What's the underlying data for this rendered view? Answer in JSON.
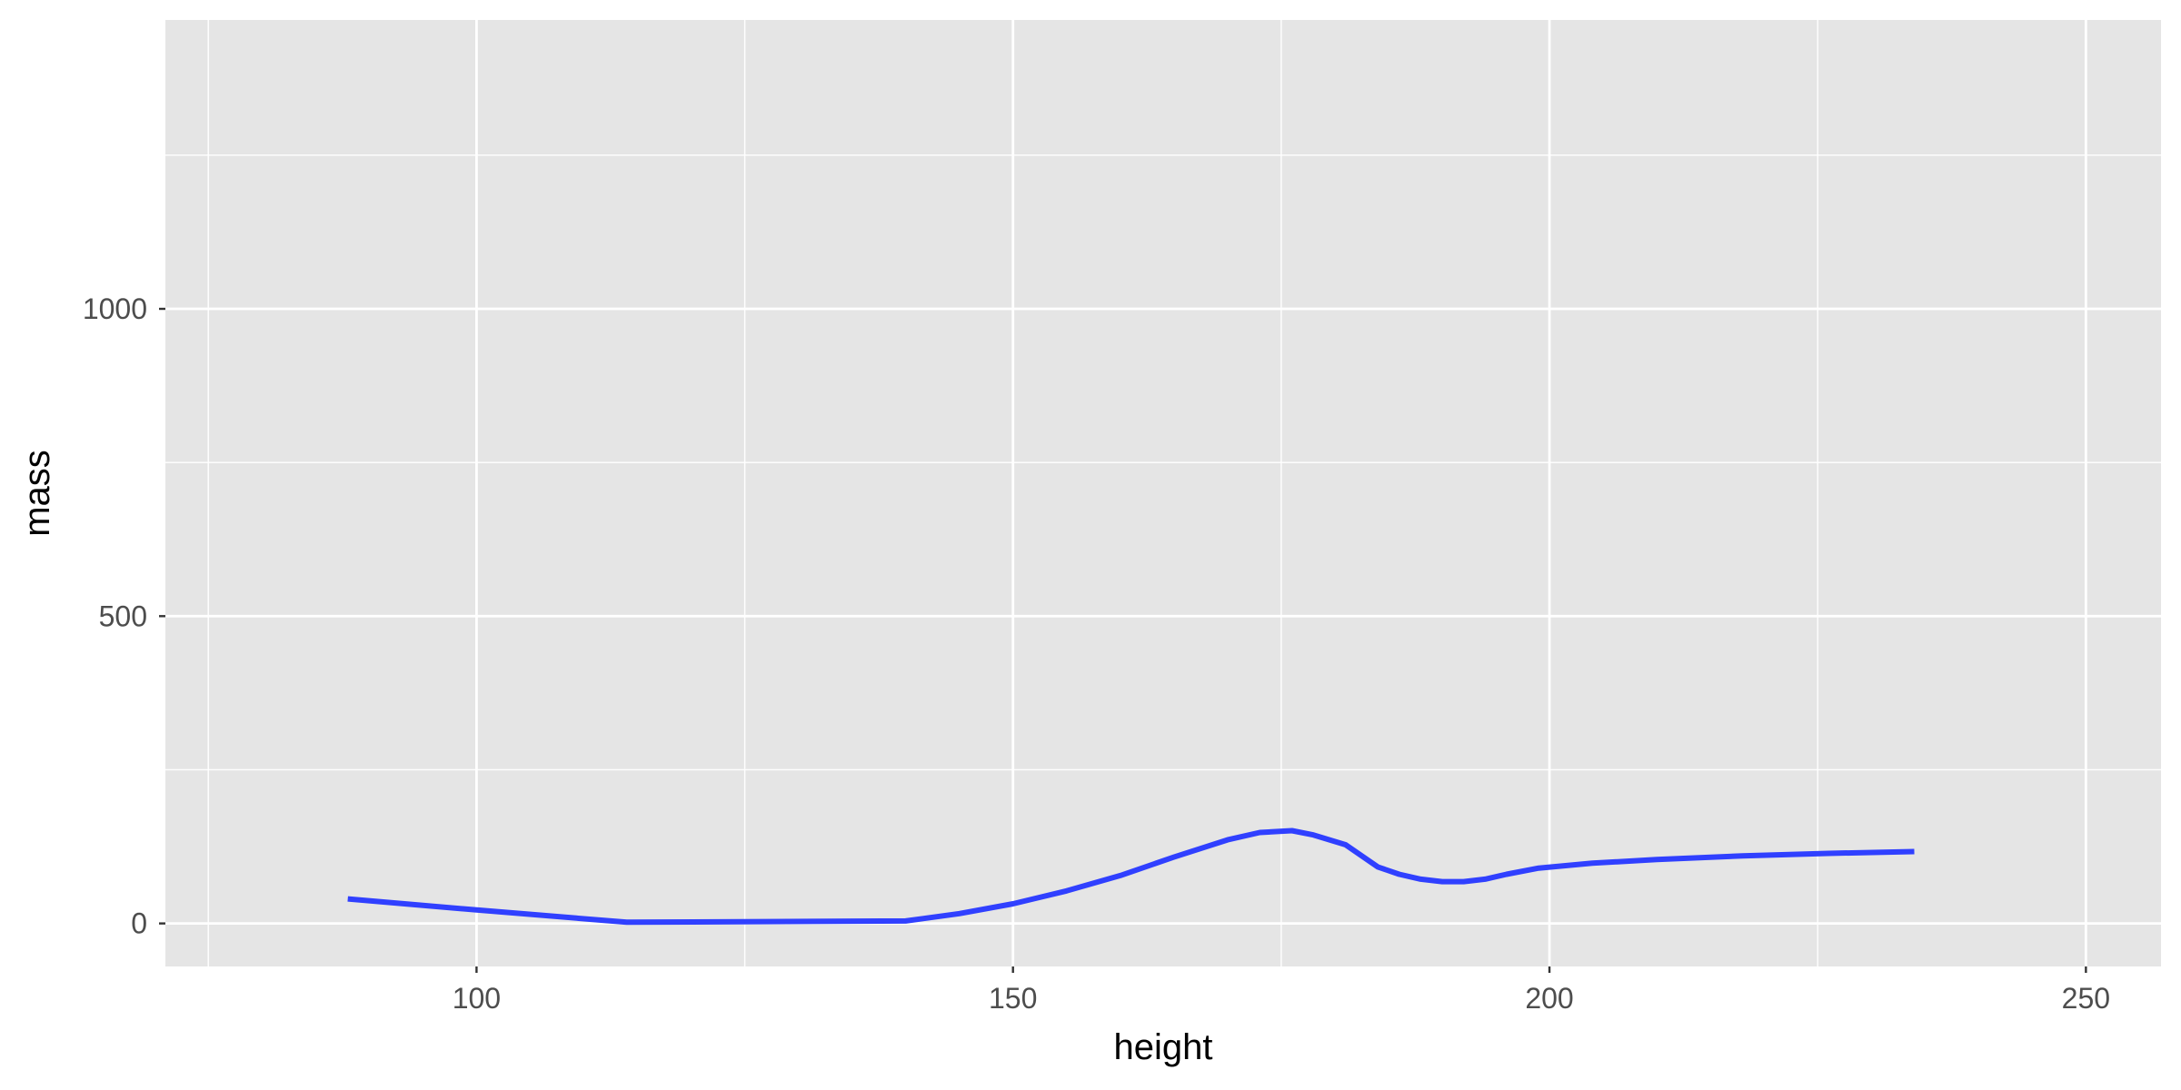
{
  "chart_data": {
    "type": "line",
    "title": "",
    "xlabel": "height",
    "ylabel": "mass",
    "xlim": [
      71,
      257
    ],
    "ylim": [
      -70,
      1470
    ],
    "x_ticks": [
      100,
      150,
      200,
      250
    ],
    "x_tick_labels": [
      "100",
      "150",
      "200",
      "250"
    ],
    "x_minor_ticks": [
      75,
      125,
      175,
      225
    ],
    "y_ticks": [
      0,
      500,
      1000
    ],
    "y_tick_labels": [
      "0",
      "500",
      "1000"
    ],
    "y_minor_ticks": [
      250,
      750,
      1250
    ],
    "grid": true,
    "legend": "none",
    "colors": {
      "panel": "#e5e5e5",
      "grid": "#ffffff",
      "line": "#3040ff",
      "axis_text": "#4d4d4d",
      "tick": "#333333"
    },
    "series": [
      {
        "x": [
          88,
          100,
          114,
          127,
          140,
          145,
          150,
          155,
          160,
          165,
          170,
          173,
          176,
          178,
          181,
          184,
          186,
          188,
          190,
          192,
          194,
          196,
          199,
          204,
          210,
          218,
          226,
          234
        ],
        "y": [
          40,
          22,
          2,
          3,
          4,
          16,
          32,
          53,
          78,
          108,
          136,
          148,
          151,
          144,
          128,
          92,
          80,
          72,
          68,
          68,
          72,
          80,
          90,
          98,
          104,
          110,
          114,
          117
        ]
      }
    ]
  }
}
